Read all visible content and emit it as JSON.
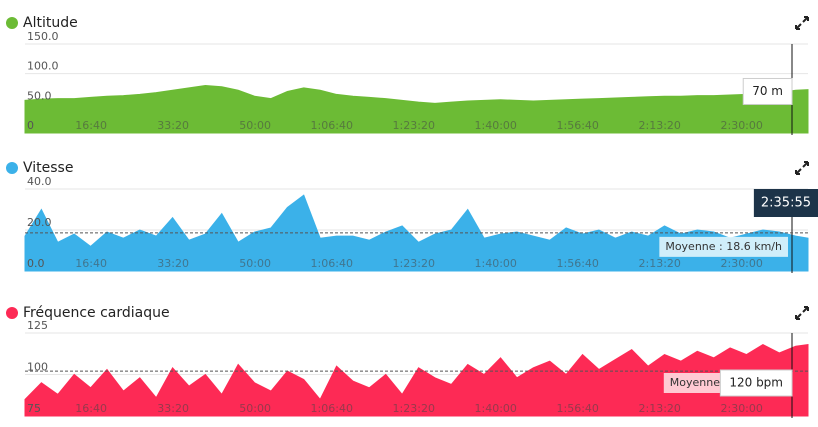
{
  "cursor": {
    "value": 9355,
    "label": "2:35:55"
  },
  "chart_data": [
    {
      "type": "area",
      "title": "Altitude",
      "color": "#6cbb35",
      "x": [
        0,
        200,
        400,
        600,
        800,
        1000,
        1200,
        1400,
        1600,
        1800,
        2000,
        2200,
        2400,
        2600,
        2800,
        3000,
        3200,
        3400,
        3600,
        3800,
        4000,
        4200,
        4400,
        4600,
        4800,
        5000,
        5200,
        5400,
        5600,
        5800,
        6000,
        6200,
        6400,
        6600,
        6800,
        7000,
        7200,
        7400,
        7600,
        7800,
        8000,
        8200,
        8400,
        8600,
        8800,
        9000,
        9200,
        9400,
        9550
      ],
      "values": [
        55,
        57,
        58,
        58,
        60,
        62,
        63,
        65,
        68,
        72,
        76,
        80,
        78,
        72,
        62,
        58,
        70,
        76,
        72,
        65,
        62,
        60,
        58,
        55,
        52,
        50,
        52,
        54,
        55,
        56,
        55,
        54,
        55,
        56,
        57,
        58,
        59,
        60,
        61,
        62,
        62,
        63,
        63,
        64,
        65,
        66,
        68,
        72,
        73
      ],
      "xlim": [
        0,
        9550
      ],
      "xticks": [
        {
          "value": 1000,
          "label": "16:40"
        },
        {
          "value": 2000,
          "label": "33:20"
        },
        {
          "value": 3000,
          "label": "50:00"
        },
        {
          "value": 4000,
          "label": "1:06:40"
        },
        {
          "value": 5000,
          "label": "1:23:20"
        },
        {
          "value": 6000,
          "label": "1:40:00"
        },
        {
          "value": 7000,
          "label": "1:56:40"
        },
        {
          "value": 8000,
          "label": "2:13:20"
        },
        {
          "value": 9000,
          "label": "2:30:00"
        }
      ],
      "ylim": [
        0,
        150
      ],
      "yticks": [
        {
          "value": 150,
          "label": "150.0"
        },
        {
          "value": 100,
          "label": "100.0"
        },
        {
          "value": 50,
          "label": "50.0"
        },
        0
      ],
      "tooltip": {
        "value": 70,
        "label": "70 m"
      }
    },
    {
      "type": "area",
      "title": "Vitesse",
      "color": "#3bb1e9",
      "x": [
        0,
        200,
        400,
        600,
        800,
        1000,
        1200,
        1400,
        1600,
        1800,
        2000,
        2200,
        2400,
        2600,
        2800,
        3000,
        3200,
        3400,
        3600,
        3800,
        4000,
        4200,
        4400,
        4600,
        4800,
        5000,
        5200,
        5400,
        5600,
        5800,
        6000,
        6200,
        6400,
        6600,
        6800,
        7000,
        7200,
        7400,
        7600,
        7800,
        8000,
        8200,
        8400,
        8600,
        8800,
        9000,
        9200,
        9400,
        9550
      ],
      "values": [
        17,
        30,
        14,
        18,
        12,
        19,
        16,
        20,
        17,
        26,
        15,
        18,
        28,
        14,
        19,
        21,
        31,
        37,
        16,
        17,
        17,
        15,
        19,
        22,
        14,
        18,
        20,
        30,
        16,
        18,
        19,
        17,
        15,
        21,
        18,
        20,
        16,
        19,
        17,
        22,
        18,
        20,
        19,
        16,
        18,
        20,
        19,
        17,
        16
      ],
      "xlim": [
        0,
        9550
      ],
      "xticks": [
        {
          "value": 1000,
          "label": "16:40"
        },
        {
          "value": 2000,
          "label": "33:20"
        },
        {
          "value": 3000,
          "label": "50:00"
        },
        {
          "value": 4000,
          "label": "1:06:40"
        },
        {
          "value": 5000,
          "label": "1:23:20"
        },
        {
          "value": 6000,
          "label": "1:40:00"
        },
        {
          "value": 7000,
          "label": "1:56:40"
        },
        {
          "value": 8000,
          "label": "2:13:20"
        },
        {
          "value": 9000,
          "label": "2:30:00"
        }
      ],
      "ylim": [
        0,
        40
      ],
      "yticks": [
        {
          "value": 40,
          "label": "40.0"
        },
        {
          "value": 20,
          "label": "20.0"
        },
        {
          "value": 0,
          "label": "0.0"
        }
      ],
      "average": {
        "value": 18.6,
        "label": "Moyenne : 18.6 km/h"
      }
    },
    {
      "type": "area",
      "title": "Fréquence cardiaque",
      "color": "#fd2a55",
      "x": [
        0,
        200,
        400,
        600,
        800,
        1000,
        1200,
        1400,
        1600,
        1800,
        2000,
        2200,
        2400,
        2600,
        2800,
        3000,
        3200,
        3400,
        3600,
        3800,
        4000,
        4200,
        4400,
        4600,
        4800,
        5000,
        5200,
        5400,
        5600,
        5800,
        6000,
        6200,
        6400,
        6600,
        6800,
        7000,
        7200,
        7400,
        7600,
        7800,
        8000,
        8200,
        8400,
        8600,
        8800,
        9000,
        9200,
        9400,
        9550
      ],
      "values": [
        85,
        95,
        88,
        100,
        92,
        103,
        90,
        98,
        86,
        104,
        93,
        100,
        88,
        106,
        95,
        90,
        102,
        97,
        85,
        105,
        96,
        92,
        100,
        88,
        104,
        98,
        94,
        106,
        100,
        110,
        98,
        104,
        108,
        100,
        112,
        103,
        109,
        115,
        105,
        112,
        108,
        114,
        110,
        116,
        112,
        118,
        113,
        117,
        118
      ],
      "xlim": [
        0,
        9550
      ],
      "xticks": [
        {
          "value": 1000,
          "label": "16:40"
        },
        {
          "value": 2000,
          "label": "33:20"
        },
        {
          "value": 3000,
          "label": "50:00"
        },
        {
          "value": 4000,
          "label": "1:06:40"
        },
        {
          "value": 5000,
          "label": "1:23:20"
        },
        {
          "value": 6000,
          "label": "1:40:00"
        },
        {
          "value": 7000,
          "label": "1:56:40"
        },
        {
          "value": 8000,
          "label": "2:13:20"
        },
        {
          "value": 9000,
          "label": "2:30:00"
        }
      ],
      "ylim": [
        75,
        125
      ],
      "yticks": [
        125,
        100,
        75
      ],
      "average": {
        "value": 102,
        "label": "Moyenne"
      },
      "tooltip": {
        "value": 120,
        "label": "120 bpm"
      }
    }
  ]
}
